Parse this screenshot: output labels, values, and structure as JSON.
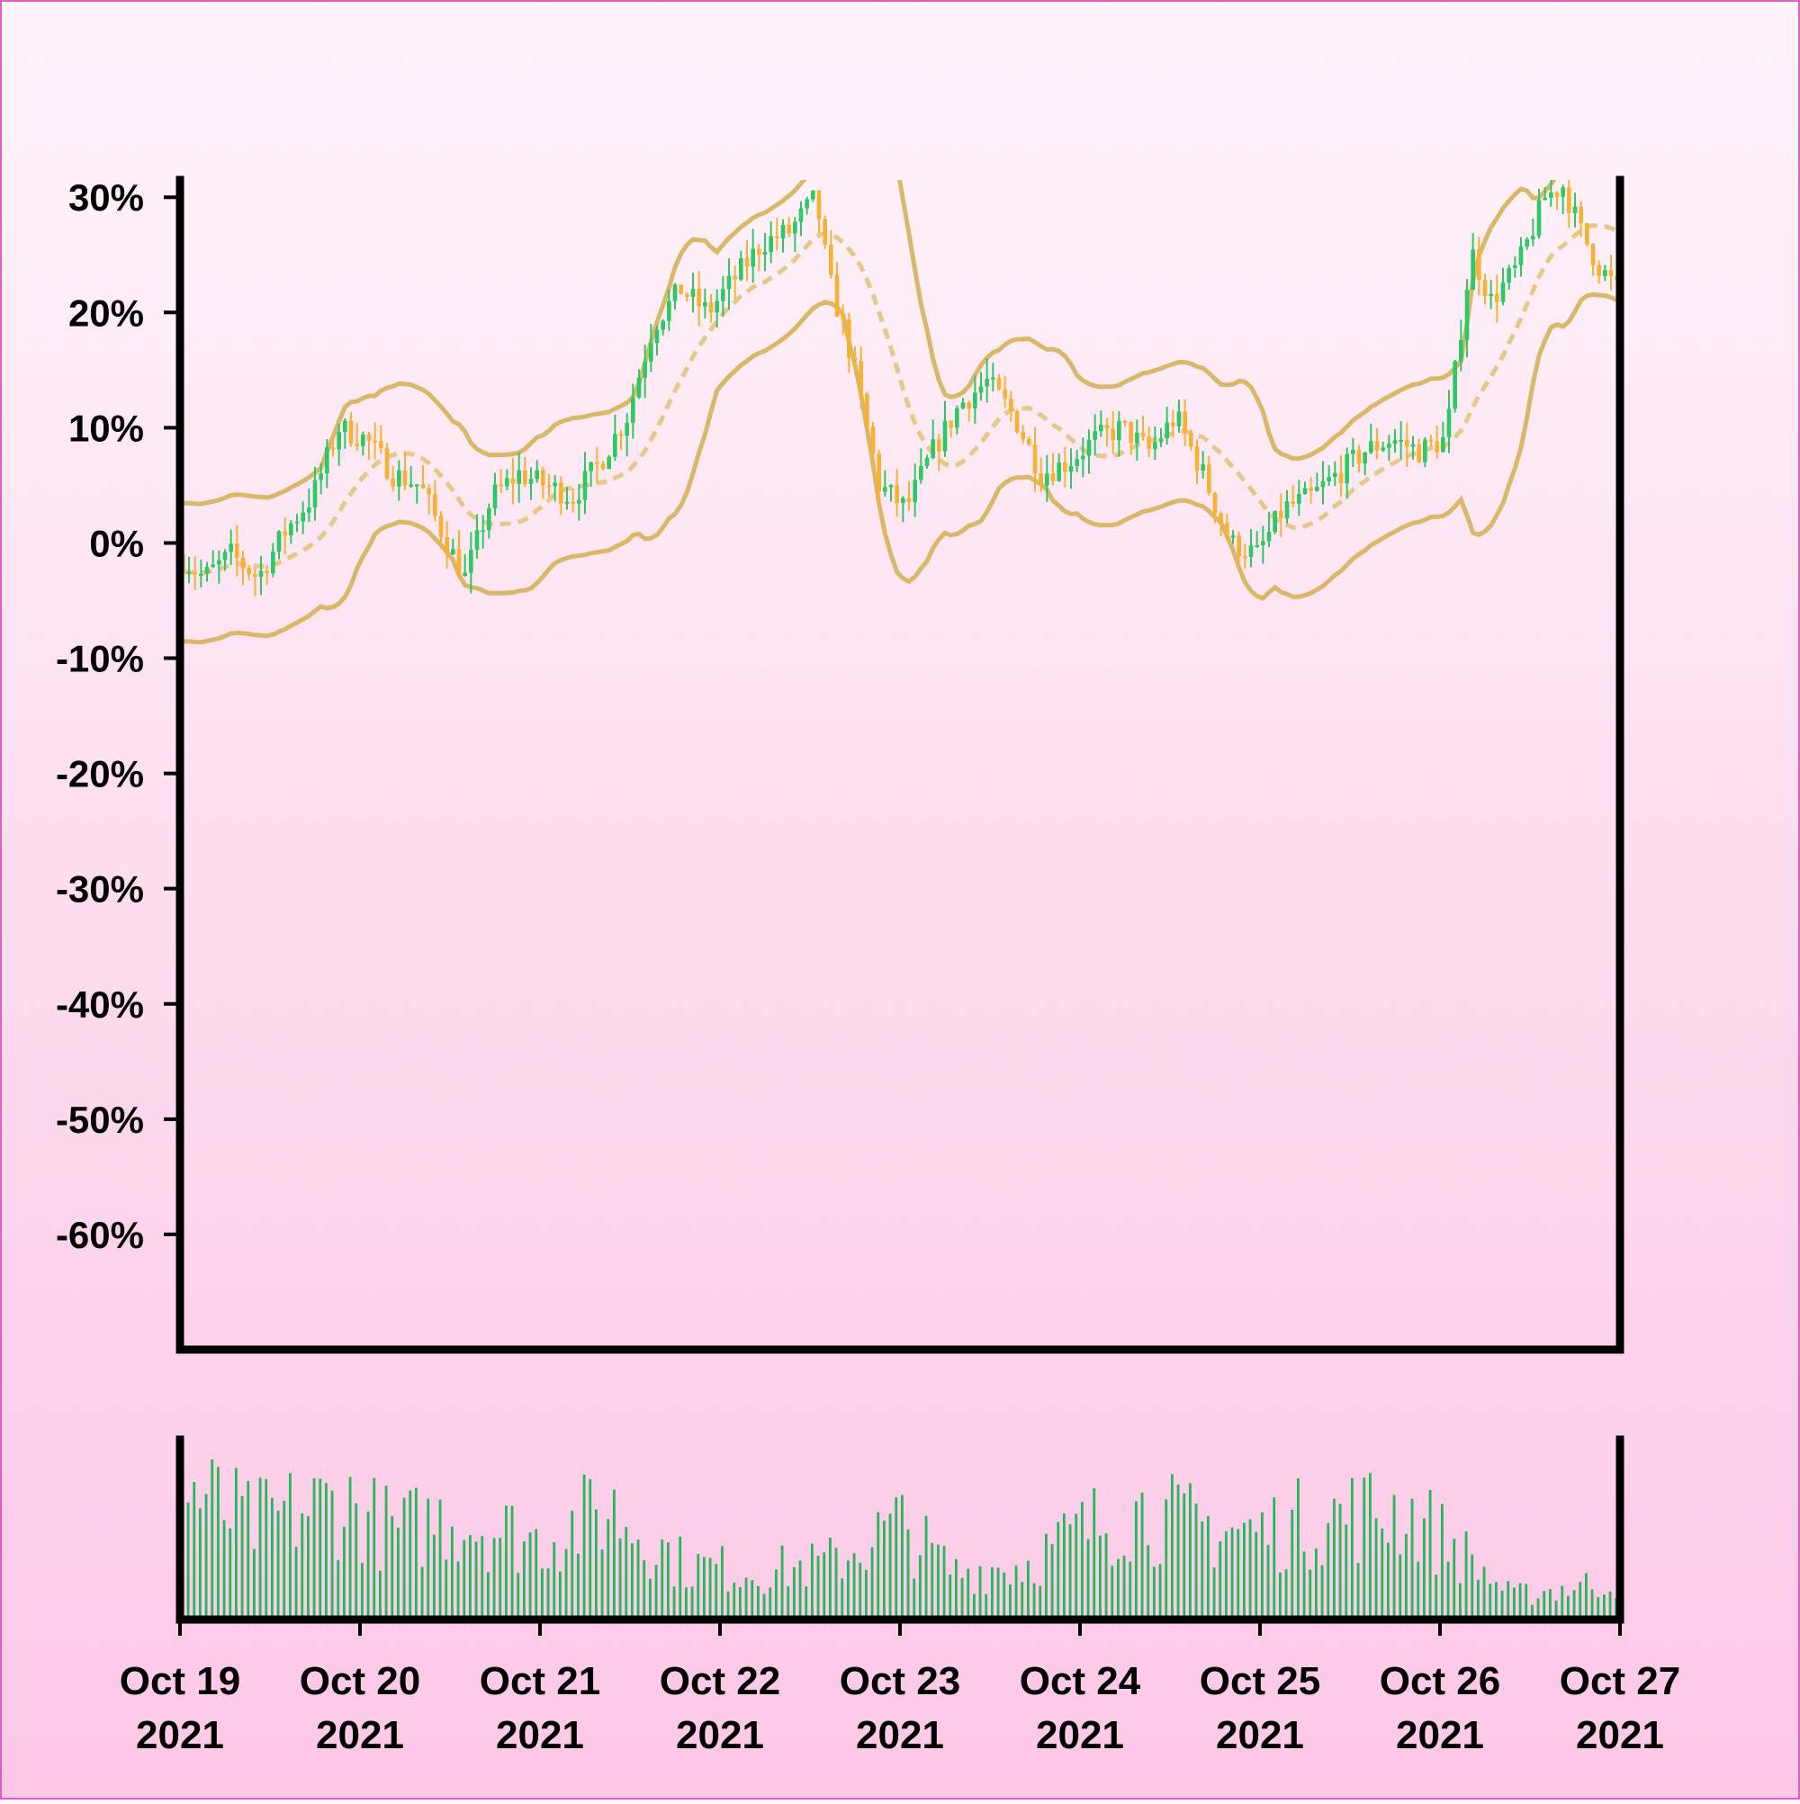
{
  "colors": {
    "up": "#2ec866",
    "down": "#f7b236",
    "band": "#d9b86a",
    "band_mid": "#e6c98a",
    "volume": "#23b859",
    "axis": "#000000"
  },
  "chart_data": {
    "type": "candlestick",
    "title": "",
    "xlabel": "",
    "ylabel": "",
    "y_unit": "%",
    "ylim": [
      -70,
      31.5
    ],
    "yticks": [
      30,
      20,
      10,
      0,
      -10,
      -20,
      -30,
      -40,
      -50,
      -60
    ],
    "ytick_labels": [
      "30%",
      "20%",
      "10%",
      "0%",
      "-10%",
      "-20%",
      "-30%",
      "-40%",
      "-50%",
      "-60%"
    ],
    "xlim": [
      0,
      8
    ],
    "xticks": [
      0,
      1,
      2,
      3,
      4,
      5,
      6,
      7,
      8
    ],
    "xtick_labels": [
      [
        "Oct 19",
        "2021"
      ],
      [
        "Oct 20",
        "2021"
      ],
      [
        "Oct 21",
        "2021"
      ],
      [
        "Oct 22",
        "2021"
      ],
      [
        "Oct 23",
        "2021"
      ],
      [
        "Oct 24",
        "2021"
      ],
      [
        "Oct 25",
        "2021"
      ],
      [
        "Oct 26",
        "2021"
      ],
      [
        "Oct 27",
        "2021"
      ]
    ],
    "grid": false,
    "legend": "none",
    "price_anchors": {
      "x": [
        0,
        0.15,
        0.3,
        0.45,
        0.6,
        0.75,
        0.9,
        1.05,
        1.2,
        1.35,
        1.5,
        1.6,
        1.75,
        1.9,
        2.05,
        2.2,
        2.35,
        2.5,
        2.65,
        2.8,
        2.95,
        3.1,
        3.25,
        3.4,
        3.55,
        3.62,
        3.75,
        3.9,
        4.05,
        4.2,
        4.35,
        4.5,
        4.65,
        4.8,
        4.95,
        5.1,
        5.25,
        5.4,
        5.55,
        5.7,
        5.85,
        6.0,
        6.15,
        6.3,
        6.45,
        6.6,
        6.75,
        6.9,
        7.05,
        7.18,
        7.2,
        7.3,
        7.45,
        7.6,
        7.7,
        7.8,
        7.9,
        8.0
      ],
      "y": [
        -1,
        -3,
        -1,
        -3,
        1,
        4,
        10,
        9,
        6,
        5,
        0,
        -3,
        4,
        6,
        5,
        4,
        7,
        11,
        19,
        22,
        20,
        23,
        26,
        27,
        30,
        23,
        16,
        5,
        3,
        8,
        12,
        14,
        11,
        6,
        7,
        9,
        10,
        8,
        11,
        6,
        0,
        -1,
        3,
        4,
        6,
        8,
        9,
        8,
        9,
        24,
        25,
        21,
        24,
        30,
        31,
        27,
        24,
        22
      ]
    },
    "volume_anchors": {
      "x": [
        0,
        0.4,
        0.9,
        1.2,
        1.5,
        2.0,
        2.4,
        2.8,
        3.2,
        3.6,
        4.0,
        4.3,
        4.7,
        5.0,
        5.3,
        5.6,
        6.0,
        6.4,
        6.8,
        7.1,
        7.4,
        7.7,
        8.0
      ],
      "y": [
        0.85,
        0.6,
        0.75,
        0.55,
        0.65,
        0.5,
        0.7,
        0.35,
        0.3,
        0.35,
        0.6,
        0.3,
        0.35,
        0.55,
        0.7,
        0.6,
        0.55,
        0.65,
        0.7,
        0.45,
        0.15,
        0.2,
        0.25
      ]
    },
    "bollinger": {
      "window_days": 0.5,
      "num_std": 2
    },
    "n_candles": 240,
    "seed": 7
  }
}
